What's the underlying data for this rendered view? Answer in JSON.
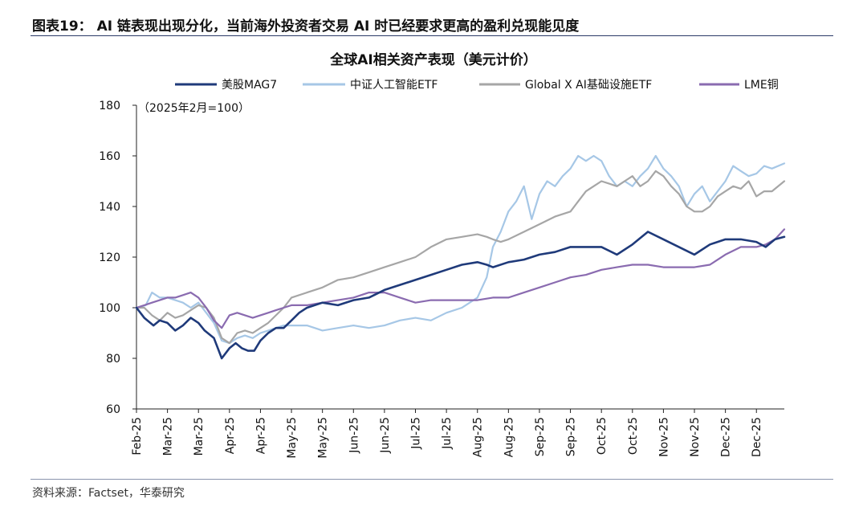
{
  "header": {
    "figure_title": "图表19： AI 链表现出现分化，当前海外投资者交易 AI 时已经要求更高的盈利兑现能见度"
  },
  "footer": {
    "source": "资料来源：Factset，华泰研究"
  },
  "chart_data": {
    "type": "line",
    "title": "全球AI相关资产表现（美元计价）",
    "annotation": "（2025年2月=100）",
    "xlabel": "",
    "ylabel": "",
    "ylim": [
      60,
      180
    ],
    "yticks": [
      60,
      80,
      100,
      120,
      140,
      160,
      180
    ],
    "x_tick_labels": [
      "Feb-25",
      "Mar-25",
      "Mar-25",
      "Apr-25",
      "Apr-25",
      "May-25",
      "May-25",
      "Jun-25",
      "Jun-25",
      "Jul-25",
      "Jul-25",
      "Aug-25",
      "Aug-25",
      "Sep-25",
      "Sep-25",
      "Oct-25",
      "Oct-25",
      "Nov-25",
      "Nov-25",
      "Dec-25",
      "Dec-25"
    ],
    "x_range": [
      0,
      20.9
    ],
    "grid": false,
    "legend_position": "top",
    "series": [
      {
        "name": "美股MAG7",
        "color": "#1f3a7a",
        "x": [
          0,
          0.25,
          0.55,
          0.75,
          1.0,
          1.25,
          1.5,
          1.75,
          2.0,
          2.2,
          2.5,
          2.75,
          3.0,
          3.2,
          3.4,
          3.6,
          3.8,
          4.0,
          4.25,
          4.5,
          4.75,
          5.0,
          5.25,
          5.5,
          6.0,
          6.5,
          7.0,
          7.5,
          8.0,
          8.5,
          9.0,
          9.5,
          10.0,
          10.5,
          11.0,
          11.3,
          11.5,
          12.0,
          12.5,
          13.0,
          13.5,
          14.0,
          14.5,
          15.0,
          15.5,
          16.0,
          16.3,
          16.5,
          17.0,
          17.5,
          18.0,
          18.5,
          19.0,
          19.5,
          20.0,
          20.3,
          20.6,
          20.9
        ],
        "values": [
          100,
          96,
          93,
          95,
          94,
          91,
          93,
          96,
          94,
          91,
          88,
          80,
          84,
          86,
          84,
          83,
          83,
          87,
          90,
          92,
          92,
          95,
          98,
          100,
          102,
          101,
          103,
          104,
          107,
          109,
          111,
          113,
          115,
          117,
          118,
          117,
          116,
          118,
          119,
          121,
          122,
          124,
          124,
          124,
          121,
          125,
          128,
          130,
          127,
          124,
          121,
          125,
          127,
          127,
          126,
          124,
          127,
          128
        ]
      },
      {
        "name": "中证人工智能ETF",
        "color": "#a6c7e6",
        "x": [
          0,
          0.3,
          0.5,
          0.75,
          1.0,
          1.25,
          1.5,
          1.75,
          2.0,
          2.25,
          2.5,
          2.75,
          3.0,
          3.25,
          3.5,
          3.75,
          4.0,
          4.25,
          4.5,
          4.75,
          5.0,
          5.25,
          5.5,
          5.75,
          6.0,
          6.5,
          7.0,
          7.5,
          8.0,
          8.5,
          9.0,
          9.5,
          10.0,
          10.5,
          11.0,
          11.3,
          11.5,
          11.75,
          12.0,
          12.25,
          12.5,
          12.75,
          13.0,
          13.25,
          13.5,
          13.75,
          14.0,
          14.25,
          14.5,
          14.75,
          15.0,
          15.25,
          15.5,
          15.75,
          16.0,
          16.25,
          16.5,
          16.75,
          17.0,
          17.25,
          17.5,
          17.75,
          18.0,
          18.25,
          18.5,
          18.75,
          19.0,
          19.25,
          19.5,
          19.75,
          20.0,
          20.25,
          20.5,
          20.9
        ],
        "values": [
          100,
          101,
          106,
          104,
          104,
          103,
          102,
          100,
          102,
          98,
          94,
          87,
          86,
          88,
          89,
          88,
          90,
          91,
          92,
          93,
          93,
          93,
          93,
          92,
          91,
          92,
          93,
          92,
          93,
          95,
          96,
          95,
          98,
          100,
          104,
          112,
          124,
          130,
          138,
          142,
          148,
          135,
          145,
          150,
          148,
          152,
          155,
          160,
          158,
          160,
          158,
          152,
          148,
          150,
          148,
          152,
          155,
          160,
          155,
          152,
          148,
          140,
          145,
          148,
          142,
          146,
          150,
          156,
          154,
          152,
          153,
          156,
          155,
          157
        ]
      },
      {
        "name": "Global X AI基础设施ETF",
        "color": "#a6a6a6",
        "x": [
          0,
          0.25,
          0.5,
          0.75,
          1.0,
          1.25,
          1.5,
          1.75,
          2.0,
          2.25,
          2.5,
          2.75,
          3.0,
          3.25,
          3.5,
          3.75,
          4.0,
          4.25,
          4.5,
          4.75,
          5.0,
          5.5,
          6.0,
          6.5,
          7.0,
          7.5,
          8.0,
          8.5,
          9.0,
          9.5,
          10.0,
          10.5,
          11.0,
          11.3,
          11.5,
          11.75,
          12.0,
          12.5,
          13.0,
          13.5,
          14.0,
          14.25,
          14.5,
          14.75,
          15.0,
          15.25,
          15.5,
          15.75,
          16.0,
          16.25,
          16.5,
          16.75,
          17.0,
          17.25,
          17.5,
          17.75,
          18.0,
          18.25,
          18.5,
          18.75,
          19.0,
          19.25,
          19.5,
          19.75,
          20.0,
          20.25,
          20.5,
          20.9
        ],
        "values": [
          100,
          100,
          97,
          95,
          98,
          96,
          97,
          99,
          101,
          100,
          96,
          88,
          86,
          90,
          91,
          90,
          92,
          94,
          97,
          100,
          104,
          106,
          108,
          111,
          112,
          114,
          116,
          118,
          120,
          124,
          127,
          128,
          129,
          128,
          127,
          126,
          127,
          130,
          133,
          136,
          138,
          142,
          146,
          148,
          150,
          149,
          148,
          150,
          152,
          148,
          150,
          154,
          152,
          148,
          145,
          140,
          138,
          138,
          140,
          144,
          146,
          148,
          147,
          150,
          144,
          146,
          146,
          150
        ]
      },
      {
        "name": "LME铜",
        "color": "#8a6bb0",
        "x": [
          0,
          0.25,
          0.5,
          0.75,
          1.0,
          1.25,
          1.5,
          1.75,
          2.0,
          2.25,
          2.5,
          2.75,
          3.0,
          3.25,
          3.5,
          3.75,
          4.0,
          4.25,
          4.5,
          4.75,
          5.0,
          5.5,
          6.0,
          6.5,
          7.0,
          7.5,
          8.0,
          8.5,
          9.0,
          9.5,
          10.0,
          10.5,
          11.0,
          11.5,
          12.0,
          12.5,
          13.0,
          13.5,
          14.0,
          14.5,
          15.0,
          15.5,
          16.0,
          16.5,
          17.0,
          17.5,
          18.0,
          18.5,
          19.0,
          19.5,
          20.0,
          20.3,
          20.6,
          20.9
        ],
        "values": [
          100,
          101,
          102,
          103,
          104,
          104,
          105,
          106,
          104,
          100,
          95,
          92,
          97,
          98,
          97,
          96,
          97,
          98,
          99,
          100,
          101,
          101,
          102,
          103,
          104,
          106,
          106,
          104,
          102,
          103,
          103,
          103,
          103,
          104,
          104,
          106,
          108,
          110,
          112,
          113,
          115,
          116,
          117,
          117,
          116,
          116,
          116,
          117,
          121,
          124,
          124,
          125,
          127,
          131
        ]
      }
    ]
  }
}
